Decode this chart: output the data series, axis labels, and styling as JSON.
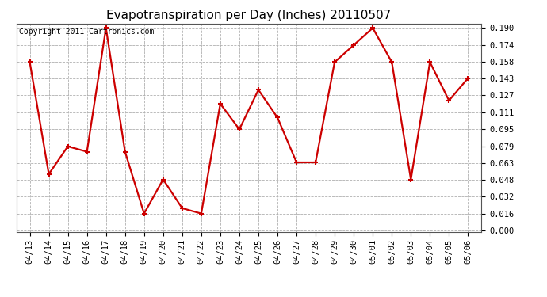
{
  "title": "Evapotranspiration per Day (Inches) 20110507",
  "copyright_text": "Copyright 2011 Cartronics.com",
  "x_labels": [
    "04/13",
    "04/14",
    "04/15",
    "04/16",
    "04/17",
    "04/18",
    "04/19",
    "04/20",
    "04/21",
    "04/22",
    "04/23",
    "04/24",
    "04/25",
    "04/26",
    "04/27",
    "04/28",
    "04/29",
    "04/30",
    "05/01",
    "05/02",
    "05/03",
    "05/04",
    "05/05",
    "05/06"
  ],
  "y_values": [
    0.158,
    0.053,
    0.079,
    0.074,
    0.19,
    0.074,
    0.016,
    0.048,
    0.021,
    0.016,
    0.119,
    0.095,
    0.132,
    0.106,
    0.064,
    0.064,
    0.158,
    0.174,
    0.19,
    0.158,
    0.048,
    0.158,
    0.122,
    0.143
  ],
  "y_ticks": [
    0.0,
    0.016,
    0.032,
    0.048,
    0.063,
    0.079,
    0.095,
    0.111,
    0.127,
    0.143,
    0.158,
    0.174,
    0.19
  ],
  "line_color": "#cc0000",
  "marker": "+",
  "marker_size": 5,
  "marker_color": "#cc0000",
  "bg_color": "#ffffff",
  "plot_bg_color": "#ffffff",
  "grid_color": "#b0b0b0",
  "title_fontsize": 11,
  "copyright_fontsize": 7,
  "tick_fontsize": 7.5,
  "ylim_max": 0.19,
  "line_width": 1.6
}
